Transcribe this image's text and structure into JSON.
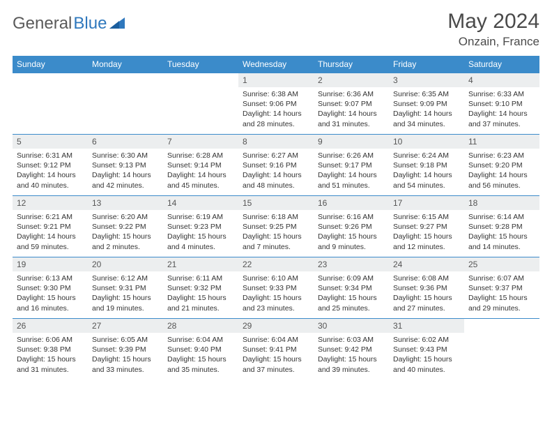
{
  "brand": {
    "part1": "General",
    "part2": "Blue"
  },
  "title": "May 2024",
  "location": "Onzain, France",
  "colors": {
    "header_bg": "#3b8bca",
    "daynum_bg": "#eceeef",
    "text": "#333333"
  },
  "weekdays": [
    "Sunday",
    "Monday",
    "Tuesday",
    "Wednesday",
    "Thursday",
    "Friday",
    "Saturday"
  ],
  "weeks": [
    [
      null,
      null,
      null,
      {
        "n": "1",
        "sr": "6:38 AM",
        "ss": "9:06 PM",
        "dl": "14 hours and 28 minutes."
      },
      {
        "n": "2",
        "sr": "6:36 AM",
        "ss": "9:07 PM",
        "dl": "14 hours and 31 minutes."
      },
      {
        "n": "3",
        "sr": "6:35 AM",
        "ss": "9:09 PM",
        "dl": "14 hours and 34 minutes."
      },
      {
        "n": "4",
        "sr": "6:33 AM",
        "ss": "9:10 PM",
        "dl": "14 hours and 37 minutes."
      }
    ],
    [
      {
        "n": "5",
        "sr": "6:31 AM",
        "ss": "9:12 PM",
        "dl": "14 hours and 40 minutes."
      },
      {
        "n": "6",
        "sr": "6:30 AM",
        "ss": "9:13 PM",
        "dl": "14 hours and 42 minutes."
      },
      {
        "n": "7",
        "sr": "6:28 AM",
        "ss": "9:14 PM",
        "dl": "14 hours and 45 minutes."
      },
      {
        "n": "8",
        "sr": "6:27 AM",
        "ss": "9:16 PM",
        "dl": "14 hours and 48 minutes."
      },
      {
        "n": "9",
        "sr": "6:26 AM",
        "ss": "9:17 PM",
        "dl": "14 hours and 51 minutes."
      },
      {
        "n": "10",
        "sr": "6:24 AM",
        "ss": "9:18 PM",
        "dl": "14 hours and 54 minutes."
      },
      {
        "n": "11",
        "sr": "6:23 AM",
        "ss": "9:20 PM",
        "dl": "14 hours and 56 minutes."
      }
    ],
    [
      {
        "n": "12",
        "sr": "6:21 AM",
        "ss": "9:21 PM",
        "dl": "14 hours and 59 minutes."
      },
      {
        "n": "13",
        "sr": "6:20 AM",
        "ss": "9:22 PM",
        "dl": "15 hours and 2 minutes."
      },
      {
        "n": "14",
        "sr": "6:19 AM",
        "ss": "9:23 PM",
        "dl": "15 hours and 4 minutes."
      },
      {
        "n": "15",
        "sr": "6:18 AM",
        "ss": "9:25 PM",
        "dl": "15 hours and 7 minutes."
      },
      {
        "n": "16",
        "sr": "6:16 AM",
        "ss": "9:26 PM",
        "dl": "15 hours and 9 minutes."
      },
      {
        "n": "17",
        "sr": "6:15 AM",
        "ss": "9:27 PM",
        "dl": "15 hours and 12 minutes."
      },
      {
        "n": "18",
        "sr": "6:14 AM",
        "ss": "9:28 PM",
        "dl": "15 hours and 14 minutes."
      }
    ],
    [
      {
        "n": "19",
        "sr": "6:13 AM",
        "ss": "9:30 PM",
        "dl": "15 hours and 16 minutes."
      },
      {
        "n": "20",
        "sr": "6:12 AM",
        "ss": "9:31 PM",
        "dl": "15 hours and 19 minutes."
      },
      {
        "n": "21",
        "sr": "6:11 AM",
        "ss": "9:32 PM",
        "dl": "15 hours and 21 minutes."
      },
      {
        "n": "22",
        "sr": "6:10 AM",
        "ss": "9:33 PM",
        "dl": "15 hours and 23 minutes."
      },
      {
        "n": "23",
        "sr": "6:09 AM",
        "ss": "9:34 PM",
        "dl": "15 hours and 25 minutes."
      },
      {
        "n": "24",
        "sr": "6:08 AM",
        "ss": "9:36 PM",
        "dl": "15 hours and 27 minutes."
      },
      {
        "n": "25",
        "sr": "6:07 AM",
        "ss": "9:37 PM",
        "dl": "15 hours and 29 minutes."
      }
    ],
    [
      {
        "n": "26",
        "sr": "6:06 AM",
        "ss": "9:38 PM",
        "dl": "15 hours and 31 minutes."
      },
      {
        "n": "27",
        "sr": "6:05 AM",
        "ss": "9:39 PM",
        "dl": "15 hours and 33 minutes."
      },
      {
        "n": "28",
        "sr": "6:04 AM",
        "ss": "9:40 PM",
        "dl": "15 hours and 35 minutes."
      },
      {
        "n": "29",
        "sr": "6:04 AM",
        "ss": "9:41 PM",
        "dl": "15 hours and 37 minutes."
      },
      {
        "n": "30",
        "sr": "6:03 AM",
        "ss": "9:42 PM",
        "dl": "15 hours and 39 minutes."
      },
      {
        "n": "31",
        "sr": "6:02 AM",
        "ss": "9:43 PM",
        "dl": "15 hours and 40 minutes."
      },
      null
    ]
  ],
  "labels": {
    "sunrise": "Sunrise:",
    "sunset": "Sunset:",
    "daylight": "Daylight:"
  }
}
